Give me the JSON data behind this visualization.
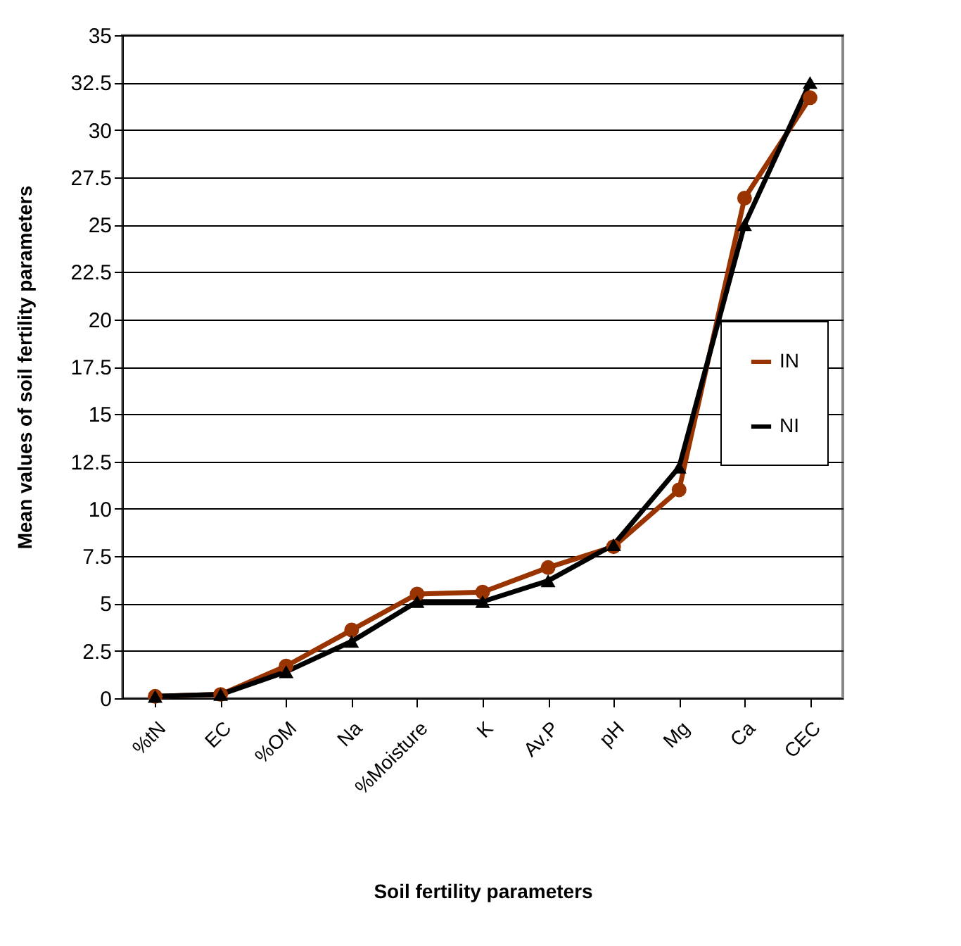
{
  "chart_data": {
    "type": "line",
    "xlabel": "Soil fertility parameters",
    "ylabel": "Mean values of soil fertility parameters",
    "categories": [
      "%tN",
      "EC",
      "%OM",
      "Na",
      "%Moisture",
      "K",
      "Av.P",
      "pH",
      "Mg",
      "Ca",
      "CEC"
    ],
    "series": [
      {
        "name": "IN",
        "color": "#993300",
        "marker": "circle",
        "values": [
          0.1,
          0.2,
          1.7,
          3.6,
          5.5,
          5.6,
          6.9,
          8.0,
          11.0,
          26.4,
          31.7
        ]
      },
      {
        "name": "NI",
        "color": "#000000",
        "marker": "triangle",
        "values": [
          0.1,
          0.2,
          1.4,
          3.0,
          5.1,
          5.1,
          6.2,
          8.1,
          12.2,
          25.0,
          32.5
        ]
      }
    ],
    "ylim": [
      0,
      35
    ],
    "yticks": [
      0,
      2.5,
      5,
      7.5,
      10,
      12.5,
      15,
      17.5,
      20,
      22.5,
      25,
      27.5,
      30,
      32.5,
      35
    ],
    "grid": "y",
    "legend": "right",
    "line_style": "solid"
  }
}
